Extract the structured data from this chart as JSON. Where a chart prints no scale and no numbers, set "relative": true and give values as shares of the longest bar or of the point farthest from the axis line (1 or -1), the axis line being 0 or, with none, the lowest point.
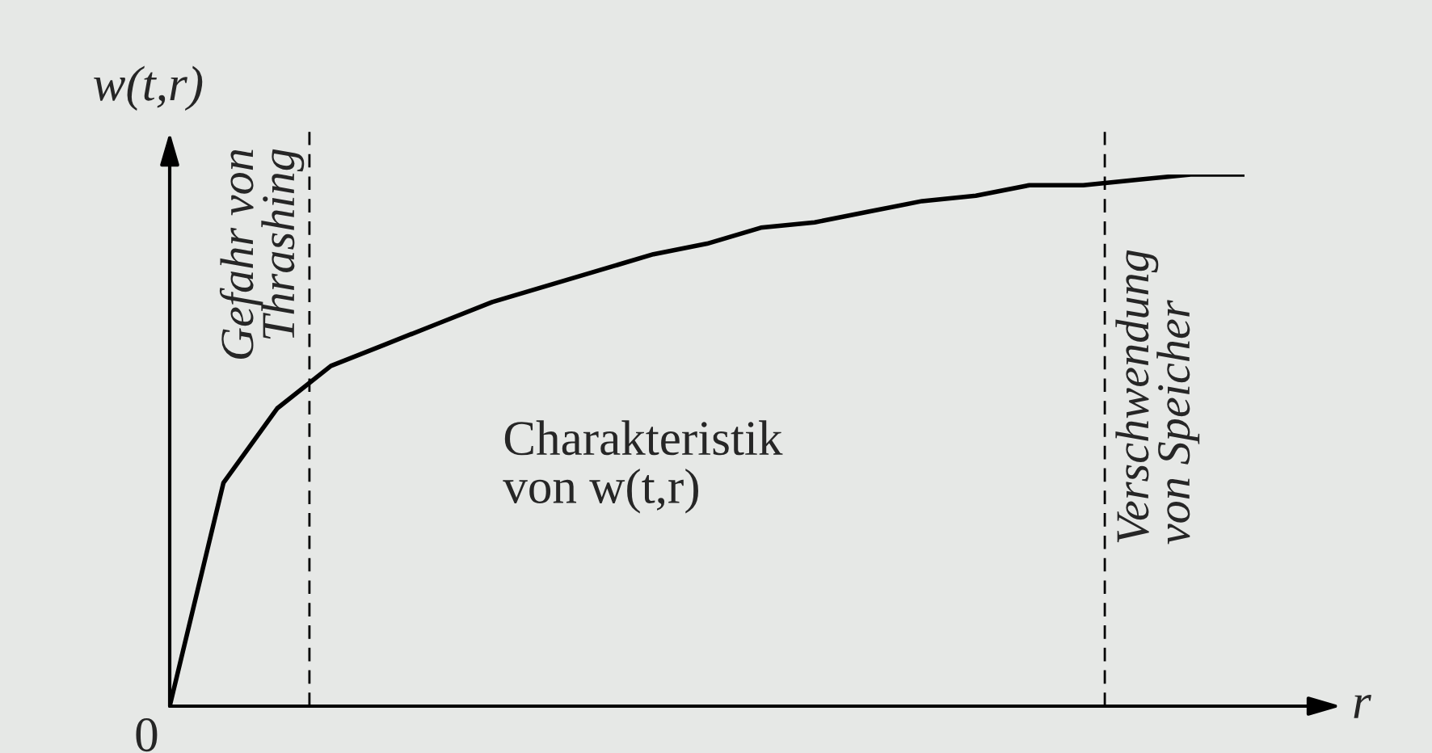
{
  "chart_data": {
    "type": "line",
    "relative": true,
    "ylabel": "w(t,r)",
    "xlabel": "r",
    "color": "#000000",
    "categories": [
      null,
      null,
      null,
      null,
      null,
      null,
      null,
      null,
      null,
      null,
      null,
      null,
      null,
      null,
      null,
      null,
      null,
      null,
      null,
      null,
      null
    ],
    "values": [
      0,
      0.42,
      0.56,
      0.64,
      0.68,
      0.72,
      0.76,
      0.79,
      0.82,
      0.85,
      0.87,
      0.9,
      0.91,
      0.93,
      0.95,
      0.96,
      0.98,
      0.98,
      0.99,
      1,
      1
    ],
    "annotations": [
      "0",
      "Charakteristik\nvon w(t,r)",
      "Gefahr von\nThrashing",
      "Verschwendung\nvon Speicher"
    ],
    "legend": false
  }
}
